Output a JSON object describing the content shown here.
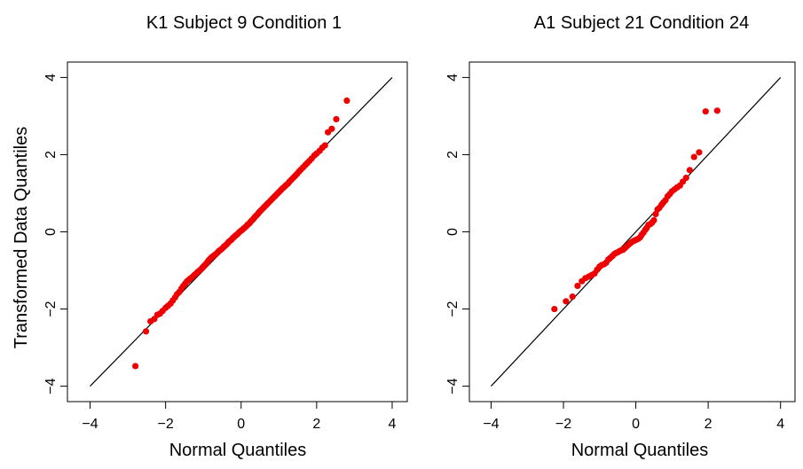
{
  "chart_data": [
    {
      "type": "scatter",
      "title": "K1 Subject 9 Condition 1",
      "xlabel": "Normal Quantiles",
      "ylabel": "Transformed Data Quantiles",
      "xlim": [
        -4.6,
        4.4
      ],
      "ylim": [
        -4.4,
        4.4
      ],
      "xticks": [
        -4,
        -2,
        0,
        2,
        4
      ],
      "yticks": [
        -4,
        -2,
        0,
        2,
        4
      ],
      "grid": false,
      "reference_line": {
        "x": [
          -4,
          4
        ],
        "y": [
          -4,
          4
        ],
        "color": "#000000"
      },
      "point_color": "#ee0000",
      "series": [
        {
          "x": [
            -2.8,
            -2.52,
            -2.4,
            -2.3,
            -2.22,
            -2.15,
            -2.08,
            -2.0,
            -1.94,
            -1.87,
            -1.81,
            -1.75,
            -1.7,
            -1.64,
            -1.58,
            -1.53,
            -1.48,
            -1.43,
            -1.38,
            -1.33,
            -1.28,
            -1.24,
            -1.19,
            -1.15,
            -1.1,
            -1.06,
            -1.02,
            -0.98,
            -0.94,
            -0.9,
            -0.86,
            -0.82,
            -0.78,
            -0.74,
            -0.7,
            -0.66,
            -0.62,
            -0.59,
            -0.55,
            -0.51,
            -0.47,
            -0.44,
            -0.4,
            -0.36,
            -0.33,
            -0.29,
            -0.25,
            -0.22,
            -0.18,
            -0.15,
            -0.11,
            -0.07,
            -0.04,
            0.0,
            0.04,
            0.07,
            0.11,
            0.15,
            0.18,
            0.22,
            0.25,
            0.29,
            0.33,
            0.36,
            0.4,
            0.44,
            0.47,
            0.51,
            0.55,
            0.59,
            0.62,
            0.66,
            0.7,
            0.74,
            0.78,
            0.82,
            0.86,
            0.9,
            0.94,
            0.98,
            1.02,
            1.06,
            1.1,
            1.15,
            1.19,
            1.24,
            1.28,
            1.33,
            1.38,
            1.43,
            1.48,
            1.53,
            1.58,
            1.64,
            1.7,
            1.75,
            1.81,
            1.87,
            1.94,
            2.0,
            2.08,
            2.15,
            2.22,
            2.3,
            2.4,
            2.52,
            2.8
          ],
          "y": [
            -3.48,
            -2.58,
            -2.32,
            -2.26,
            -2.15,
            -2.12,
            -2.05,
            -1.97,
            -1.92,
            -1.86,
            -1.78,
            -1.7,
            -1.62,
            -1.56,
            -1.47,
            -1.4,
            -1.34,
            -1.28,
            -1.24,
            -1.2,
            -1.16,
            -1.12,
            -1.08,
            -1.04,
            -1.0,
            -0.97,
            -0.92,
            -0.88,
            -0.84,
            -0.79,
            -0.74,
            -0.7,
            -0.66,
            -0.63,
            -0.6,
            -0.57,
            -0.53,
            -0.5,
            -0.47,
            -0.44,
            -0.4,
            -0.37,
            -0.34,
            -0.3,
            -0.26,
            -0.23,
            -0.2,
            -0.16,
            -0.13,
            -0.1,
            -0.07,
            -0.03,
            0.0,
            0.03,
            0.06,
            0.09,
            0.12,
            0.16,
            0.19,
            0.22,
            0.26,
            0.3,
            0.34,
            0.38,
            0.42,
            0.46,
            0.5,
            0.54,
            0.58,
            0.62,
            0.65,
            0.69,
            0.73,
            0.77,
            0.81,
            0.85,
            0.89,
            0.93,
            0.97,
            1.01,
            1.05,
            1.09,
            1.13,
            1.17,
            1.21,
            1.25,
            1.3,
            1.35,
            1.4,
            1.45,
            1.5,
            1.56,
            1.61,
            1.67,
            1.73,
            1.78,
            1.84,
            1.9,
            1.98,
            2.03,
            2.1,
            2.18,
            2.24,
            2.58,
            2.67,
            2.92,
            3.4
          ]
        }
      ]
    },
    {
      "type": "scatter",
      "title": "A1 Subject 21 Condition 24",
      "xlabel": "Normal Quantiles",
      "ylabel": "",
      "xlim": [
        -4.6,
        4.4
      ],
      "ylim": [
        -4.4,
        4.4
      ],
      "xticks": [
        -4,
        -2,
        0,
        2,
        4
      ],
      "yticks": [
        -4,
        -2,
        0,
        2,
        4
      ],
      "grid": false,
      "reference_line": {
        "x": [
          -4,
          4
        ],
        "y": [
          -4,
          4
        ],
        "color": "#000000"
      },
      "point_color": "#ee0000",
      "series": [
        {
          "x": [
            -2.25,
            -1.93,
            -1.75,
            -1.61,
            -1.49,
            -1.39,
            -1.3,
            -1.22,
            -1.14,
            -1.07,
            -1.0,
            -0.94,
            -0.88,
            -0.82,
            -0.76,
            -0.71,
            -0.65,
            -0.6,
            -0.55,
            -0.5,
            -0.45,
            -0.4,
            -0.35,
            -0.3,
            -0.26,
            -0.21,
            -0.16,
            -0.12,
            -0.07,
            -0.02,
            0.02,
            0.07,
            0.12,
            0.16,
            0.21,
            0.26,
            0.3,
            0.35,
            0.4,
            0.45,
            0.5,
            0.55,
            0.6,
            0.65,
            0.71,
            0.76,
            0.82,
            0.88,
            0.94,
            1.0,
            1.07,
            1.14,
            1.22,
            1.3,
            1.39,
            1.49,
            1.61,
            1.75,
            1.93,
            2.25
          ],
          "y": [
            -2.0,
            -1.8,
            -1.68,
            -1.4,
            -1.28,
            -1.2,
            -1.16,
            -1.12,
            -1.08,
            -0.98,
            -0.9,
            -0.86,
            -0.84,
            -0.8,
            -0.72,
            -0.68,
            -0.63,
            -0.58,
            -0.55,
            -0.53,
            -0.5,
            -0.48,
            -0.46,
            -0.42,
            -0.38,
            -0.34,
            -0.3,
            -0.27,
            -0.24,
            -0.22,
            -0.2,
            -0.18,
            -0.14,
            -0.08,
            -0.02,
            0.05,
            0.1,
            0.18,
            0.2,
            0.24,
            0.3,
            0.46,
            0.58,
            0.62,
            0.7,
            0.76,
            0.82,
            0.92,
            0.98,
            1.05,
            1.1,
            1.15,
            1.2,
            1.3,
            1.4,
            1.6,
            1.94,
            2.06,
            3.12,
            3.14
          ]
        }
      ]
    }
  ]
}
